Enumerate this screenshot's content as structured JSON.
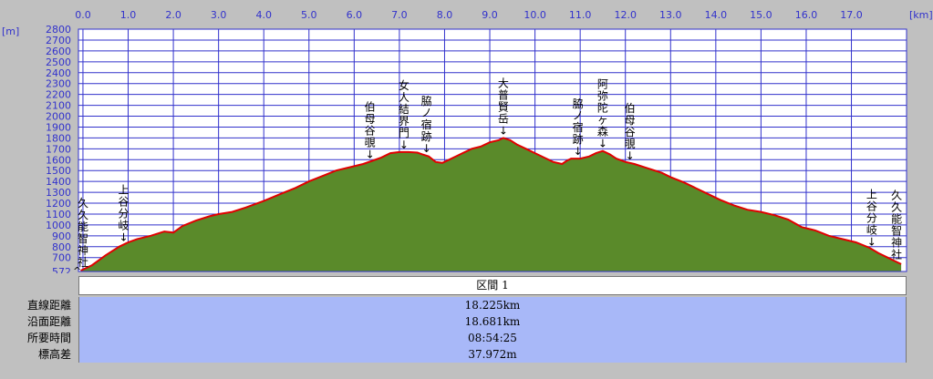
{
  "chart_data": {
    "type": "area",
    "x_unit": "[km]",
    "y_unit": "[m]",
    "xlim": [
      -0.1,
      18.22
    ],
    "ylim": [
      572,
      2800
    ],
    "x_ticks": [
      "0.0",
      "1.0",
      "2.0",
      "3.0",
      "4.0",
      "5.0",
      "6.0",
      "7.0",
      "8.0",
      "9.0",
      "10.0",
      "11.0",
      "12.0",
      "13.0",
      "14.0",
      "15.0",
      "16.0",
      "17.0"
    ],
    "x_tick_values": [
      0,
      1,
      2,
      3,
      4,
      5,
      6,
      7,
      8,
      9,
      10,
      11,
      12,
      13,
      14,
      15,
      16,
      17
    ],
    "y_ticks": [
      "2800",
      "2700",
      "2600",
      "2500",
      "2400",
      "2300",
      "2200",
      "2100",
      "2000",
      "1900",
      "1800",
      "1700",
      "1600",
      "1500",
      "1400",
      "1300",
      "1200",
      "1100",
      "1000",
      "900",
      "800",
      "700",
      "572"
    ],
    "y_tick_values": [
      2800,
      2700,
      2600,
      2500,
      2400,
      2300,
      2200,
      2100,
      2000,
      1900,
      1800,
      1700,
      1600,
      1500,
      1400,
      1300,
      1200,
      1100,
      1000,
      900,
      800,
      700,
      572
    ],
    "grid": true,
    "profile": {
      "x": [
        -0.05,
        0.2,
        0.5,
        0.8,
        1.0,
        1.2,
        1.5,
        1.8,
        2.0,
        2.2,
        2.5,
        2.8,
        3.0,
        3.3,
        3.6,
        4.0,
        4.4,
        4.7,
        5.0,
        5.3,
        5.6,
        5.9,
        6.2,
        6.4,
        6.6,
        6.8,
        7.0,
        7.2,
        7.4,
        7.5,
        7.65,
        7.8,
        7.95,
        8.1,
        8.3,
        8.6,
        8.8,
        9.0,
        9.2,
        9.3,
        9.45,
        9.6,
        9.8,
        10.0,
        10.2,
        10.4,
        10.6,
        10.7,
        10.8,
        11.0,
        11.2,
        11.35,
        11.5,
        11.65,
        11.8,
        12.0,
        12.2,
        12.5,
        12.8,
        13.0,
        13.3,
        13.6,
        13.9,
        14.1,
        14.4,
        14.7,
        15.0,
        15.3,
        15.6,
        15.9,
        16.2,
        16.5,
        16.8,
        17.1,
        17.4,
        17.6,
        17.8,
        18.0,
        18.1
      ],
      "y": [
        580,
        630,
        720,
        800,
        840,
        870,
        900,
        940,
        930,
        990,
        1040,
        1080,
        1100,
        1120,
        1160,
        1220,
        1290,
        1340,
        1400,
        1450,
        1500,
        1530,
        1560,
        1590,
        1620,
        1660,
        1670,
        1670,
        1665,
        1650,
        1630,
        1580,
        1570,
        1600,
        1640,
        1700,
        1720,
        1760,
        1780,
        1800,
        1780,
        1740,
        1700,
        1660,
        1620,
        1580,
        1560,
        1590,
        1610,
        1610,
        1630,
        1660,
        1680,
        1650,
        1610,
        1580,
        1560,
        1520,
        1480,
        1440,
        1390,
        1330,
        1270,
        1230,
        1180,
        1140,
        1120,
        1090,
        1050,
        980,
        950,
        900,
        870,
        840,
        790,
        740,
        700,
        660,
        640
      ]
    },
    "annotations": [
      {
        "x": 0.0,
        "chars": [
          "久",
          "久",
          "能",
          "智",
          "神",
          "社"
        ]
      },
      {
        "x": 0.9,
        "chars": [
          "上",
          "谷",
          "分",
          "岐",
          "↓"
        ]
      },
      {
        "x": 6.35,
        "chars": [
          "伯",
          "母",
          "谷",
          "覗",
          "↓"
        ]
      },
      {
        "x": 7.1,
        "chars": [
          "女",
          "人",
          "結",
          "界",
          "門",
          "↓"
        ]
      },
      {
        "x": 7.6,
        "chars": [
          "脇",
          "ノ",
          "宿",
          "跡",
          "↓"
        ]
      },
      {
        "x": 9.3,
        "chars": [
          "大",
          "普",
          "賢",
          "岳",
          "↓"
        ]
      },
      {
        "x": 10.95,
        "chars": [
          "脇",
          "ノ",
          "宿",
          "跡",
          "↓"
        ]
      },
      {
        "x": 11.5,
        "chars": [
          "阿",
          "弥",
          "陀",
          "ヶ",
          "森",
          "↓"
        ]
      },
      {
        "x": 12.1,
        "chars": [
          "伯",
          "母",
          "谷",
          "覗",
          "↓"
        ]
      },
      {
        "x": 17.45,
        "chars": [
          "上",
          "谷",
          "分",
          "岐",
          "↓"
        ]
      },
      {
        "x": 18.0,
        "chars": [
          "久",
          "久",
          "能",
          "智",
          "神",
          "社"
        ]
      }
    ],
    "colors": {
      "fill": "#5a8a2a",
      "line": "#e00000",
      "grid": "#3232cc",
      "plot_bg": "#ffffff",
      "outer_bg": "#c0c0c0"
    }
  },
  "summary": {
    "section": "区間 1",
    "rows": [
      {
        "label": "直線距離",
        "value": "18.225km"
      },
      {
        "label": "沿面距離",
        "value": "18.681km"
      },
      {
        "label": "所要時間",
        "value": "08:54:25"
      },
      {
        "label": "標高差",
        "value": "37.972m"
      }
    ]
  }
}
